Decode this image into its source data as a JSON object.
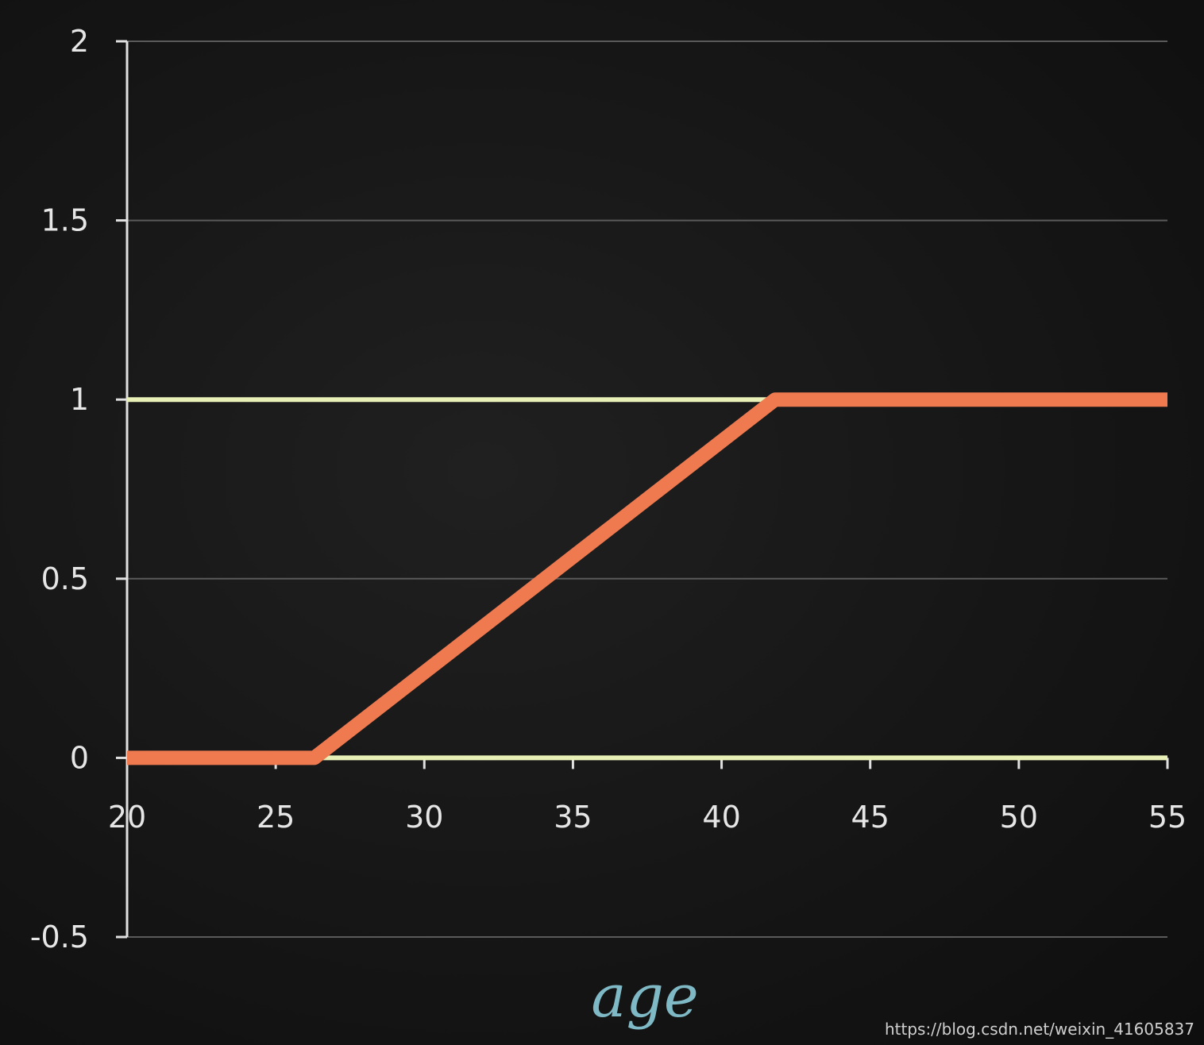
{
  "chart_data": {
    "type": "line",
    "xlabel": "age",
    "ylabel": "",
    "xlim": [
      20,
      55
    ],
    "ylim": [
      -0.5,
      2
    ],
    "xticks": [
      "20",
      "25",
      "30",
      "35",
      "40",
      "45",
      "50",
      "55"
    ],
    "yticks": [
      "-0.5",
      "0",
      "0.5",
      "1",
      "1.5",
      "2"
    ],
    "ytick_values": [
      -0.5,
      0,
      0.5,
      1,
      1.5,
      2
    ],
    "grid": true,
    "series": [
      {
        "color": "#f07a50",
        "x": [
          20,
          26.3,
          41.8,
          55
        ],
        "y": [
          0,
          0,
          1,
          1
        ]
      }
    ],
    "reference_lines": [
      {
        "y": 0,
        "color": "#e8f0b8"
      },
      {
        "y": 1,
        "color": "#e8f0b8"
      }
    ]
  },
  "watermark": "https://blog.csdn.net/weixin_41605837",
  "colors": {
    "background": "#161616",
    "axis": "#e0e0e0",
    "grid": "#5a5a5a",
    "xlabel": "#7fb9c6"
  }
}
